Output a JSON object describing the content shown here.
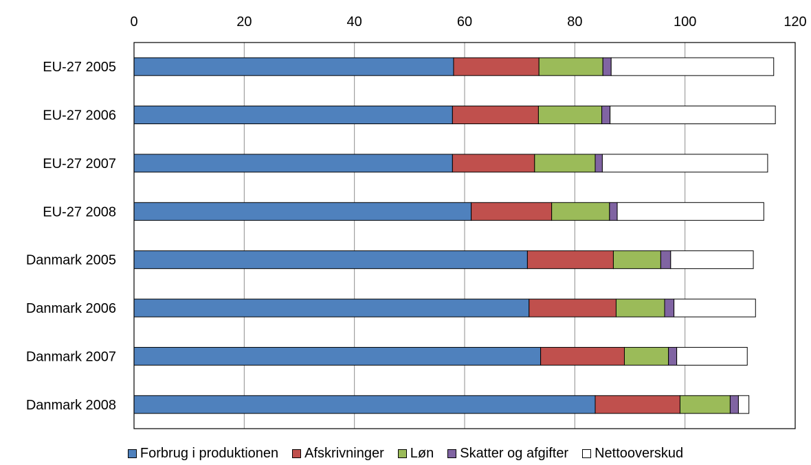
{
  "chart_data": {
    "type": "bar",
    "orientation": "horizontal",
    "stacked": true,
    "categories": [
      "EU-27 2005",
      "EU-27 2006",
      "EU-27 2007",
      "EU-27 2008",
      "Danmark 2005",
      "Danmark 2006",
      "Danmark 2007",
      "Danmark 2008"
    ],
    "series": [
      {
        "name": "Forbrug i produktionen",
        "color": "#4F81BD",
        "values": [
          58.0,
          57.8,
          57.8,
          61.2,
          71.4,
          71.7,
          73.8,
          83.7
        ]
      },
      {
        "name": "Afskrivninger",
        "color": "#C0504D",
        "values": [
          15.5,
          15.6,
          14.9,
          14.6,
          15.6,
          15.8,
          15.2,
          15.4
        ]
      },
      {
        "name": "Løn",
        "color": "#9BBB59",
        "values": [
          11.6,
          11.5,
          11.0,
          10.5,
          8.6,
          8.8,
          8.0,
          9.1
        ]
      },
      {
        "name": "Skatter og afgifter",
        "color": "#8064A2",
        "values": [
          1.5,
          1.5,
          1.3,
          1.4,
          1.8,
          1.7,
          1.5,
          1.5
        ]
      },
      {
        "name": "Nettooverskud",
        "color": "#FFFFFF",
        "values": [
          29.5,
          30.0,
          30.0,
          26.6,
          15.0,
          14.8,
          12.8,
          1.9
        ]
      }
    ],
    "xlim": [
      0,
      120
    ],
    "xticks": [
      0,
      20,
      40,
      60,
      80,
      100,
      120
    ],
    "xaxis_position": "top",
    "grid": "vertical",
    "legend_position": "bottom",
    "title": "",
    "xlabel": "",
    "ylabel": ""
  }
}
